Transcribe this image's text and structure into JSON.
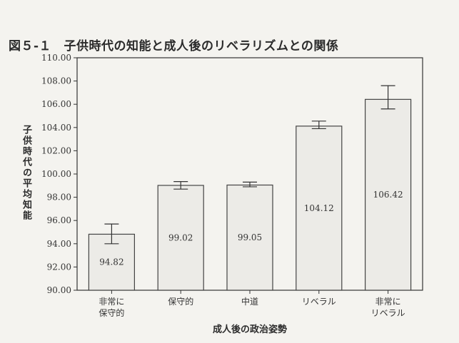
{
  "chart_data": {
    "type": "bar",
    "title": "図５-１　子供時代の知能と成人後のリベラリズムとの関係",
    "ylabel": "子供時代の平均知能",
    "xlabel": "成人後の政治姿勢",
    "categories": [
      [
        "非常に",
        "保守的"
      ],
      [
        "保守的"
      ],
      [
        "中道"
      ],
      [
        "リベラル"
      ],
      [
        "非常に",
        "リベラル"
      ]
    ],
    "values": [
      94.82,
      99.02,
      99.05,
      104.12,
      106.42
    ],
    "value_labels": [
      "94.82",
      "99.02",
      "99.05",
      "104.12",
      "106.42"
    ],
    "error_bars": [
      [
        94.0,
        95.7
      ],
      [
        98.7,
        99.35
      ],
      [
        98.9,
        99.3
      ],
      [
        103.9,
        104.55
      ],
      [
        105.6,
        107.6
      ]
    ],
    "ylim": [
      90,
      110
    ],
    "yticks": [
      90,
      92,
      94,
      96,
      98,
      100,
      102,
      104,
      106,
      108,
      110
    ],
    "ytick_labels": [
      "90.00",
      "92.00",
      "94.00",
      "96.00",
      "98.00",
      "100.00",
      "102.00",
      "104.00",
      "106.00",
      "108.00",
      "110.00"
    ],
    "grid": false,
    "legend": "none",
    "colors": {
      "bar_fill": "#ecebe7",
      "bar_stroke": "#444444",
      "axis": "#333333"
    }
  }
}
